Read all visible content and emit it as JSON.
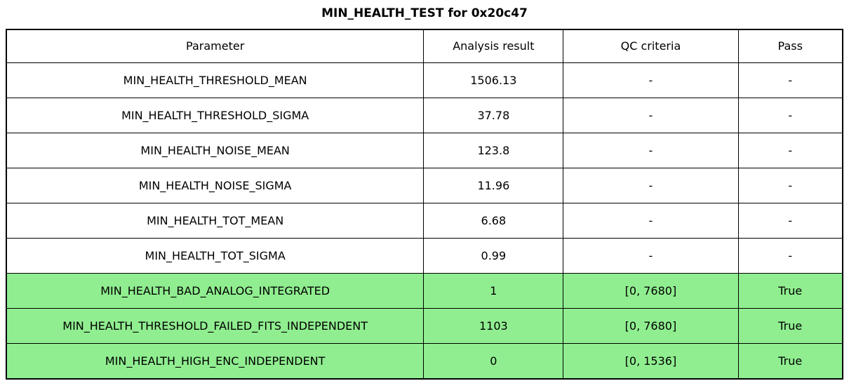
{
  "colors": {
    "pass_row_bg": "#90EE90",
    "border": "#000000",
    "text": "#000000",
    "background": "#ffffff"
  },
  "chart_data": {
    "type": "table",
    "title": "MIN_HEALTH_TEST for 0x20c47",
    "columns": [
      "Parameter",
      "Analysis result",
      "QC criteria",
      "Pass"
    ],
    "rows": [
      [
        "MIN_HEALTH_THRESHOLD_MEAN",
        "1506.13",
        "-",
        "-"
      ],
      [
        "MIN_HEALTH_THRESHOLD_SIGMA",
        "37.78",
        "-",
        "-"
      ],
      [
        "MIN_HEALTH_NOISE_MEAN",
        "123.8",
        "-",
        "-"
      ],
      [
        "MIN_HEALTH_NOISE_SIGMA",
        "11.96",
        "-",
        "-"
      ],
      [
        "MIN_HEALTH_TOT_MEAN",
        "6.68",
        "-",
        "-"
      ],
      [
        "MIN_HEALTH_TOT_SIGMA",
        "0.99",
        "-",
        "-"
      ],
      [
        "MIN_HEALTH_BAD_ANALOG_INTEGRATED",
        "1",
        "[0, 7680]",
        "True"
      ],
      [
        "MIN_HEALTH_THRESHOLD_FAILED_FITS_INDEPENDENT",
        "1103",
        "[0, 7680]",
        "True"
      ],
      [
        "MIN_HEALTH_HIGH_ENC_INDEPENDENT",
        "0",
        "[0, 1536]",
        "True"
      ]
    ],
    "highlighted_rows": {
      "indices": [
        6,
        7,
        8
      ],
      "color": "#90EE90",
      "meaning": "row has QC criteria and Pass = True"
    },
    "legend_position": "none",
    "grid": "full cell borders"
  }
}
